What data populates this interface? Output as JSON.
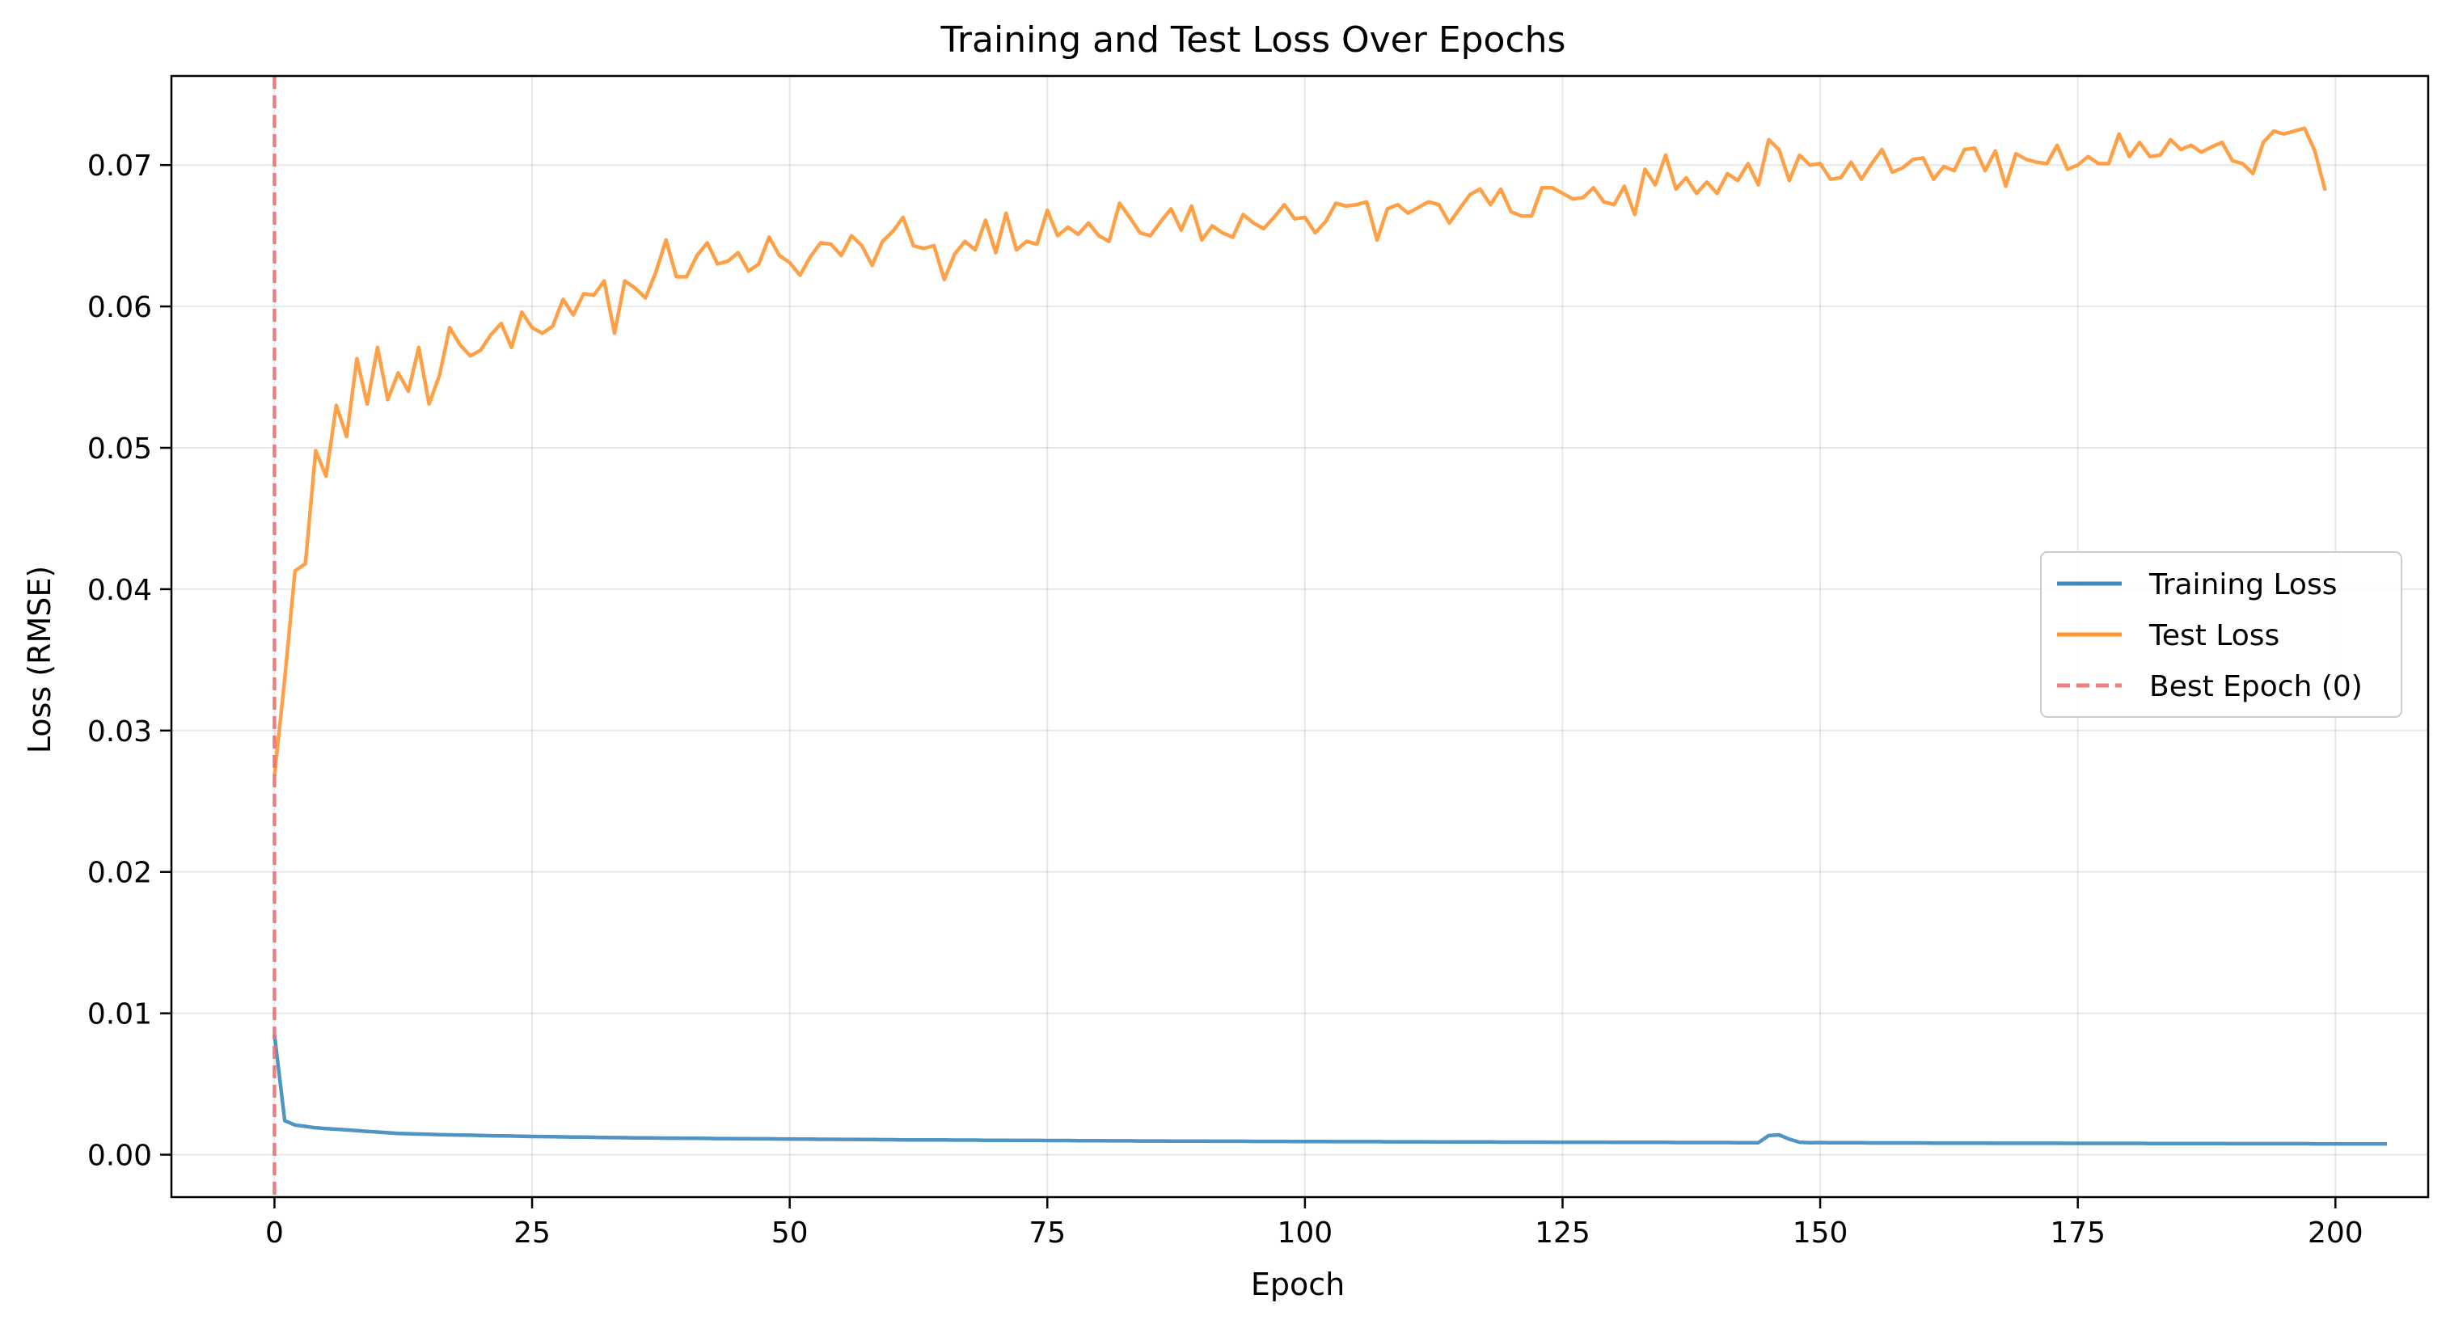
{
  "chart_data": {
    "type": "line",
    "title": "Training and Test Loss Over Epochs",
    "xlabel": "Epoch",
    "ylabel": "Loss (RMSE)",
    "xlim": [
      -10,
      209
    ],
    "ylim": [
      -0.003,
      0.0763
    ],
    "xticks": [
      0,
      25,
      50,
      75,
      100,
      125,
      150,
      175,
      200
    ],
    "xtick_labels": [
      "0",
      "25",
      "50",
      "75",
      "100",
      "125",
      "150",
      "175",
      "200"
    ],
    "yticks": [
      0,
      0.01,
      0.02,
      0.03,
      0.04,
      0.05,
      0.06,
      0.07
    ],
    "ytick_labels": [
      "0.00",
      "0.01",
      "0.02",
      "0.03",
      "0.04",
      "0.05",
      "0.06",
      "0.07"
    ],
    "grid": true,
    "legend_position": "center-right",
    "best_epoch": {
      "name": "Best Epoch (0)",
      "x": 0,
      "color": "#f07070"
    },
    "series": [
      {
        "name": "Training Loss",
        "color": "#3d88bd",
        "values": [
          0.0085,
          0.0024,
          0.0021,
          0.002,
          0.0019,
          0.00185,
          0.0018,
          0.00175,
          0.0017,
          0.00165,
          0.0016,
          0.00155,
          0.0015,
          0.00148,
          0.00146,
          0.00144,
          0.00142,
          0.0014,
          0.00139,
          0.00138,
          0.00136,
          0.00134,
          0.00133,
          0.00132,
          0.0013,
          0.00129,
          0.00128,
          0.00127,
          0.00126,
          0.00125,
          0.00124,
          0.00123,
          0.00122,
          0.00121,
          0.0012,
          0.00119,
          0.00119,
          0.00118,
          0.00117,
          0.00117,
          0.00116,
          0.00116,
          0.00115,
          0.00114,
          0.00114,
          0.00113,
          0.00113,
          0.00112,
          0.00112,
          0.00111,
          0.00111,
          0.0011,
          0.0011,
          0.00109,
          0.00109,
          0.00108,
          0.00108,
          0.00107,
          0.00107,
          0.00106,
          0.00106,
          0.00105,
          0.00105,
          0.00105,
          0.00104,
          0.00104,
          0.00103,
          0.00103,
          0.00103,
          0.00102,
          0.00102,
          0.00102,
          0.00101,
          0.00101,
          0.00101,
          0.001,
          0.001,
          0.001,
          0.00099,
          0.00099,
          0.00099,
          0.00098,
          0.00098,
          0.00098,
          0.00097,
          0.00097,
          0.00097,
          0.00096,
          0.00096,
          0.00096,
          0.00096,
          0.00095,
          0.00095,
          0.00095,
          0.00095,
          0.00094,
          0.00094,
          0.00094,
          0.00094,
          0.00093,
          0.00093,
          0.00093,
          0.00093,
          0.00092,
          0.00092,
          0.00092,
          0.00092,
          0.00092,
          0.00091,
          0.00091,
          0.00091,
          0.00091,
          0.00091,
          0.0009,
          0.0009,
          0.0009,
          0.0009,
          0.0009,
          0.0009,
          0.00089,
          0.00089,
          0.00089,
          0.00089,
          0.00089,
          0.00088,
          0.00088,
          0.00088,
          0.00088,
          0.00088,
          0.00088,
          0.00087,
          0.00087,
          0.00087,
          0.00087,
          0.00087,
          0.00087,
          0.00086,
          0.00086,
          0.00086,
          0.00086,
          0.00086,
          0.00086,
          0.00085,
          0.00085,
          0.00085,
          0.00135,
          0.0014,
          0.0011,
          0.00088,
          0.00085,
          0.00086,
          0.00084,
          0.00084,
          0.00084,
          0.00084,
          0.00083,
          0.00083,
          0.00083,
          0.00083,
          0.00083,
          0.00083,
          0.00082,
          0.00082,
          0.00082,
          0.00082,
          0.00082,
          0.00082,
          0.00081,
          0.00081,
          0.00081,
          0.00081,
          0.00081,
          0.00081,
          0.00081,
          0.0008,
          0.0008,
          0.0008,
          0.0008,
          0.0008,
          0.0008,
          0.0008,
          0.0008,
          0.00079,
          0.00079,
          0.00079,
          0.00079,
          0.00079,
          0.00079,
          0.00079,
          0.00079,
          0.00078,
          0.00078,
          0.00078,
          0.00078,
          0.00078,
          0.00078,
          0.00078,
          0.00078,
          0.00077,
          0.00077,
          0.00077,
          0.00077,
          0.00077,
          0.00077,
          0.00077,
          0.00077
        ]
      },
      {
        "name": "Test Loss",
        "color": "#ff9632",
        "values": [
          0.0268,
          0.0337,
          0.0413,
          0.0418,
          0.0498,
          0.048,
          0.053,
          0.0508,
          0.0563,
          0.0531,
          0.0571,
          0.0534,
          0.0553,
          0.054,
          0.0571,
          0.0531,
          0.0551,
          0.0585,
          0.0573,
          0.0565,
          0.0569,
          0.058,
          0.0588,
          0.0571,
          0.0596,
          0.0585,
          0.0581,
          0.0586,
          0.0605,
          0.0594,
          0.0609,
          0.0608,
          0.0618,
          0.0581,
          0.0618,
          0.0613,
          0.0606,
          0.0624,
          0.0647,
          0.0621,
          0.0621,
          0.0636,
          0.0645,
          0.063,
          0.0632,
          0.0638,
          0.0625,
          0.063,
          0.0649,
          0.0636,
          0.0631,
          0.0622,
          0.0635,
          0.0645,
          0.0644,
          0.0636,
          0.065,
          0.0643,
          0.0629,
          0.0646,
          0.0653,
          0.0663,
          0.0643,
          0.0641,
          0.0643,
          0.0619,
          0.0637,
          0.0646,
          0.064,
          0.0661,
          0.0638,
          0.0666,
          0.064,
          0.0646,
          0.0644,
          0.0668,
          0.065,
          0.0656,
          0.0651,
          0.0659,
          0.065,
          0.0646,
          0.0673,
          0.0663,
          0.0652,
          0.065,
          0.066,
          0.0669,
          0.0654,
          0.0671,
          0.0647,
          0.0657,
          0.0652,
          0.0649,
          0.0665,
          0.0659,
          0.0655,
          0.0663,
          0.0672,
          0.0662,
          0.0663,
          0.0652,
          0.066,
          0.0673,
          0.0671,
          0.0672,
          0.0674,
          0.0647,
          0.0669,
          0.0672,
          0.0666,
          0.067,
          0.0674,
          0.0672,
          0.0659,
          0.0669,
          0.0679,
          0.0683,
          0.0672,
          0.0683,
          0.0667,
          0.0664,
          0.0664,
          0.0684,
          0.0684,
          0.068,
          0.0676,
          0.0677,
          0.0684,
          0.0674,
          0.0672,
          0.0685,
          0.0665,
          0.0697,
          0.0686,
          0.0707,
          0.0683,
          0.0691,
          0.068,
          0.0688,
          0.068,
          0.0694,
          0.0689,
          0.0701,
          0.0686,
          0.0718,
          0.0711,
          0.0689,
          0.0707,
          0.07,
          0.0701,
          0.069,
          0.0691,
          0.0702,
          0.069,
          0.0701,
          0.0711,
          0.0695,
          0.0698,
          0.0704,
          0.0705,
          0.069,
          0.0699,
          0.0696,
          0.0711,
          0.0712,
          0.0696,
          0.071,
          0.0685,
          0.0708,
          0.0704,
          0.0702,
          0.0701,
          0.0714,
          0.0697,
          0.07,
          0.0706,
          0.0701,
          0.0701,
          0.0722,
          0.0706,
          0.0716,
          0.0706,
          0.0707,
          0.0718,
          0.0711,
          0.0714,
          0.0709,
          0.0713,
          0.0716,
          0.0703,
          0.0701,
          0.0694,
          0.0716,
          0.0724,
          0.0722,
          0.0724,
          0.0726,
          0.071,
          0.0682
        ]
      }
    ]
  }
}
